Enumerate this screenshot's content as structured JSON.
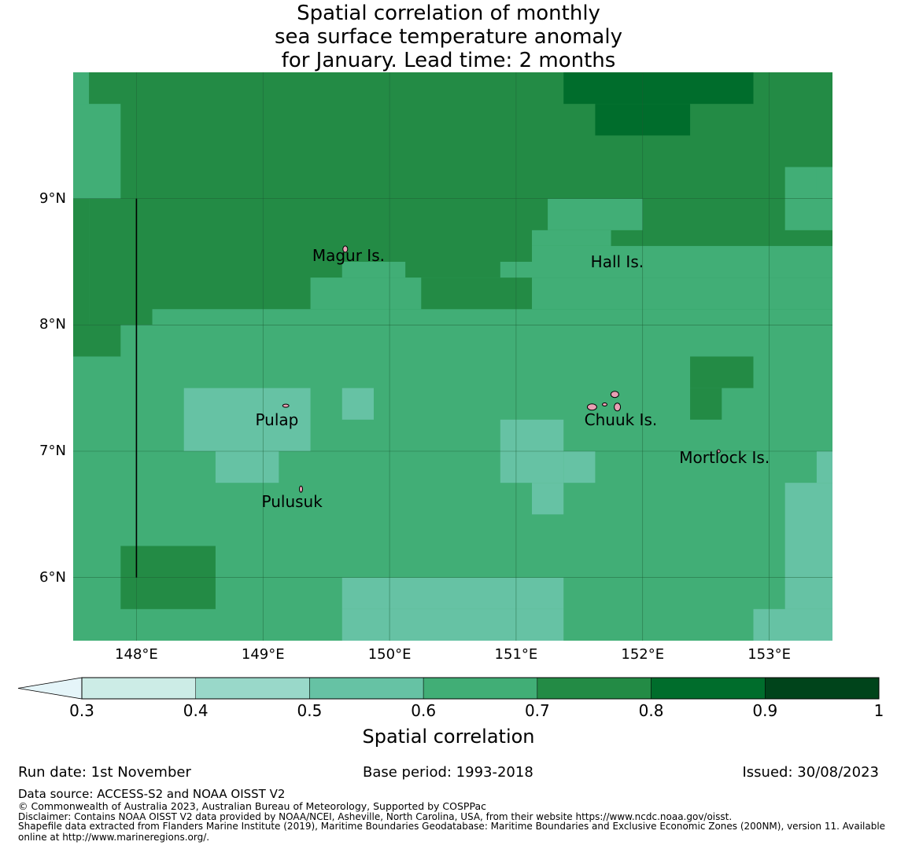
{
  "title": {
    "line1": "Spatial correlation of monthly",
    "line2": "sea surface temperature anomaly",
    "line3": "for January. Lead time: 2 months"
  },
  "colors": {
    "bin_0.3_0.4": "#ccece6",
    "bin_0.4_0.5": "#99d8c9",
    "bin_0.5_0.6": "#66c2a4",
    "bin_0.6_0.7": "#41ae76",
    "bin_0.7_0.8": "#238b45",
    "bin_0.8_0.9": "#006d2c",
    "bin_0.9_1.0": "#00441b",
    "below_0.3": "#e5f5f9"
  },
  "chart_data": {
    "type": "heatmap",
    "title": "Spatial correlation of monthly sea surface temperature anomaly for January. Lead time: 2 months",
    "lon_range": [
      147.5,
      153.5
    ],
    "lat_range": [
      5.5,
      10.0
    ],
    "cell_size_deg": 0.25,
    "longitude_ticks": [
      "148°E",
      "149°E",
      "150°E",
      "151°E",
      "152°E",
      "153°E"
    ],
    "latitude_ticks": [
      "9°N",
      "8°N",
      "7°N",
      "6°N"
    ],
    "background_value": 0.65,
    "regions": [
      {
        "lon": [
          147.625,
          153.5
        ],
        "lat": [
          8.0,
          10.0
        ],
        "value": 0.75
      },
      {
        "lon": [
          147.5,
          147.625
        ],
        "lat": [
          8.0,
          9.0
        ],
        "value": 0.75
      },
      {
        "lon": [
          147.5,
          147.875
        ],
        "lat": [
          7.75,
          8.0
        ],
        "value": 0.75
      },
      {
        "lon": [
          147.5,
          147.875
        ],
        "lat": [
          9.0,
          9.75
        ],
        "value": 0.65
      },
      {
        "lon": [
          148.125,
          153.5
        ],
        "lat": [
          8.0,
          8.125
        ],
        "value": 0.65
      },
      {
        "lon": [
          149.375,
          153.5
        ],
        "lat": [
          8.125,
          8.375
        ],
        "value": 0.65
      },
      {
        "lon": [
          150.25,
          151.125
        ],
        "lat": [
          8.125,
          8.375
        ],
        "value": 0.75
      },
      {
        "lon": [
          151.25,
          152.0
        ],
        "lat": [
          8.75,
          9.0
        ],
        "value": 0.65
      },
      {
        "lon": [
          153.125,
          153.5
        ],
        "lat": [
          8.75,
          9.25
        ],
        "value": 0.65
      },
      {
        "lon": [
          149.625,
          150.125
        ],
        "lat": [
          8.375,
          8.5
        ],
        "value": 0.65
      },
      {
        "lon": [
          150.875,
          153.5
        ],
        "lat": [
          8.375,
          8.5
        ],
        "value": 0.65
      },
      {
        "lon": [
          151.125,
          153.5
        ],
        "lat": [
          8.5,
          8.625
        ],
        "value": 0.65
      },
      {
        "lon": [
          151.125,
          151.75
        ],
        "lat": [
          8.625,
          8.75
        ],
        "value": 0.65
      },
      {
        "lon": [
          153.375,
          153.5
        ],
        "lat": [
          9.0,
          9.25
        ],
        "value": 0.65
      },
      {
        "lon": [
          151.375,
          152.875
        ],
        "lat": [
          9.75,
          10.0
        ],
        "value": 0.85
      },
      {
        "lon": [
          151.625,
          152.375
        ],
        "lat": [
          9.5,
          9.75
        ],
        "value": 0.85
      },
      {
        "lon": [
          148.375,
          149.375
        ],
        "lat": [
          7.0,
          7.5
        ],
        "value": 0.55
      },
      {
        "lon": [
          148.625,
          149.125
        ],
        "lat": [
          6.75,
          7.0
        ],
        "value": 0.55
      },
      {
        "lon": [
          149.625,
          149.875
        ],
        "lat": [
          7.25,
          7.5
        ],
        "value": 0.55
      },
      {
        "lon": [
          150.875,
          151.375
        ],
        "lat": [
          6.75,
          7.25
        ],
        "value": 0.55
      },
      {
        "lon": [
          151.375,
          151.625
        ],
        "lat": [
          6.75,
          7.0
        ],
        "value": 0.55
      },
      {
        "lon": [
          151.125,
          151.375
        ],
        "lat": [
          6.5,
          6.75
        ],
        "value": 0.55
      },
      {
        "lon": [
          152.375,
          152.875
        ],
        "lat": [
          7.5,
          7.75
        ],
        "value": 0.75
      },
      {
        "lon": [
          152.375,
          152.625
        ],
        "lat": [
          7.25,
          7.5
        ],
        "value": 0.75
      },
      {
        "lon": [
          147.875,
          148.625
        ],
        "lat": [
          5.75,
          6.25
        ],
        "value": 0.75
      },
      {
        "lon": [
          149.625,
          151.375
        ],
        "lat": [
          5.5,
          5.75
        ],
        "value": 0.55
      },
      {
        "lon": [
          149.625,
          151.375
        ],
        "lat": [
          5.75,
          6.0
        ],
        "value": 0.55
      },
      {
        "lon": [
          152.875,
          153.5
        ],
        "lat": [
          5.5,
          5.75
        ],
        "value": 0.55
      },
      {
        "lon": [
          153.125,
          153.5
        ],
        "lat": [
          5.75,
          6.75
        ],
        "value": 0.55
      },
      {
        "lon": [
          153.375,
          153.5
        ],
        "lat": [
          6.75,
          7.0
        ],
        "value": 0.55
      }
    ],
    "places": [
      {
        "name": "Magur Is.",
        "lon": 149.7,
        "lat": 8.55
      },
      {
        "name": "Hall Is.",
        "lon": 151.9,
        "lat": 8.5
      },
      {
        "name": "Pulap",
        "lon": 149.25,
        "lat": 7.25
      },
      {
        "name": "Chuuk Is.",
        "lon": 151.85,
        "lat": 7.25
      },
      {
        "name": "Mortlock Is.",
        "lon": 152.6,
        "lat": 6.95
      },
      {
        "name": "Pulusuk",
        "lon": 149.3,
        "lat": 6.6
      }
    ],
    "colorbar": {
      "label": "Spatial correlation",
      "ticks": [
        "0.3",
        "0.4",
        "0.5",
        "0.6",
        "0.7",
        "0.8",
        "0.9",
        "1"
      ],
      "bins": [
        0.3,
        0.4,
        0.5,
        0.6,
        0.7,
        0.8,
        0.9,
        1.0
      ],
      "extend": "min"
    }
  },
  "footer": {
    "run_date": "Run date: 1st November",
    "base_period": "Base period: 1993-2018",
    "issued": "Issued: 30/08/2023",
    "data_source": "Data source: ACCESS-S2 and NOAA OISST V2",
    "copyright": "© Commonwealth of Australia 2023, Australian Bureau of Meteorology, Supported by COSPPac",
    "disclaimer": "Disclaimer: Contains NOAA OISST V2 data provided by NOAA/NCEI, Asheville, North Carolina, USA, from their website https://www.ncdc.noaa.gov/oisst.",
    "shapefile_line1": "Shapefile data extracted from Flanders Marine Institute (2019), Maritime Boundaries Geodatabase: Maritime Boundaries and Exclusive Economic Zones (200NM), version 11. Available",
    "shapefile_line2": "online at http://www.marineregions.org/."
  }
}
